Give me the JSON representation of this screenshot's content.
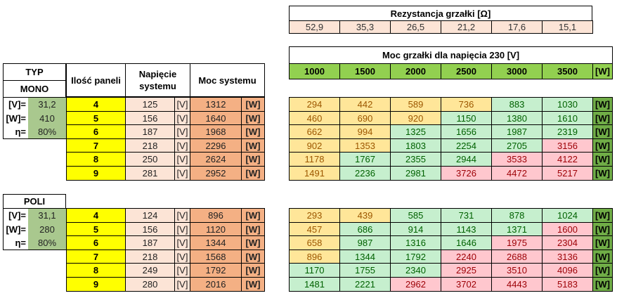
{
  "resistance": {
    "title": "Rezystancja grzałki  [Ω]",
    "values": [
      "52,9",
      "35,3",
      "26,5",
      "21,2",
      "17,6",
      "15,1"
    ]
  },
  "heater_power": {
    "title": "Moc grzałki dla napięcia 230 [V]",
    "values": [
      "1000",
      "1500",
      "2000",
      "2500",
      "3000",
      "3500"
    ],
    "unit": "[W]"
  },
  "headers": {
    "typ": "TYP",
    "ilosc": "Ilość paneli",
    "napiecie": "Napięcie systemu",
    "moc": "Moc systemu"
  },
  "units": {
    "v": "[V]",
    "w": "[W]"
  },
  "colors": {
    "under": "#FFE699",
    "ok": "#C6EFCE",
    "over": "#FFC7CE",
    "header_green": "#92D050",
    "panels": "#FFFF00"
  },
  "legend_status": {
    "y": "under",
    "g": "ok",
    "r": "over"
  },
  "sections": [
    {
      "name": "MONO",
      "params": [
        {
          "label": "[V]=",
          "value": "31,2"
        },
        {
          "label": "[W]=",
          "value": "410"
        },
        {
          "label": "η=",
          "value": "80%"
        }
      ],
      "rows": [
        {
          "panels": "4",
          "voltage": "125",
          "power": "1312",
          "heater": [
            "294",
            "442",
            "589",
            "736",
            "883",
            "1030"
          ],
          "status": [
            "y",
            "y",
            "y",
            "y",
            "g",
            "g"
          ]
        },
        {
          "panels": "5",
          "voltage": "156",
          "power": "1640",
          "heater": [
            "460",
            "690",
            "920",
            "1150",
            "1380",
            "1610"
          ],
          "status": [
            "y",
            "y",
            "y",
            "g",
            "g",
            "g"
          ]
        },
        {
          "panels": "6",
          "voltage": "187",
          "power": "1968",
          "heater": [
            "662",
            "994",
            "1325",
            "1656",
            "1987",
            "2319"
          ],
          "status": [
            "y",
            "y",
            "g",
            "g",
            "g",
            "g"
          ]
        },
        {
          "panels": "7",
          "voltage": "218",
          "power": "2296",
          "heater": [
            "902",
            "1353",
            "1803",
            "2254",
            "2705",
            "3156"
          ],
          "status": [
            "y",
            "y",
            "g",
            "g",
            "g",
            "r"
          ]
        },
        {
          "panels": "8",
          "voltage": "250",
          "power": "2624",
          "heater": [
            "1178",
            "1767",
            "2355",
            "2944",
            "3533",
            "4122"
          ],
          "status": [
            "y",
            "g",
            "g",
            "g",
            "r",
            "r"
          ]
        },
        {
          "panels": "9",
          "voltage": "281",
          "power": "2952",
          "heater": [
            "1491",
            "2236",
            "2981",
            "3726",
            "4472",
            "5217"
          ],
          "status": [
            "y",
            "g",
            "g",
            "r",
            "r",
            "r"
          ]
        }
      ]
    },
    {
      "name": "POLI",
      "params": [
        {
          "label": "[V]=",
          "value": "31,1"
        },
        {
          "label": "[W]=",
          "value": "280"
        },
        {
          "label": "η=",
          "value": "80%"
        }
      ],
      "rows": [
        {
          "panels": "4",
          "voltage": "124",
          "power": "896",
          "heater": [
            "293",
            "439",
            "585",
            "731",
            "878",
            "1024"
          ],
          "status": [
            "y",
            "y",
            "g",
            "g",
            "g",
            "g"
          ]
        },
        {
          "panels": "5",
          "voltage": "156",
          "power": "1120",
          "heater": [
            "457",
            "686",
            "914",
            "1143",
            "1371",
            "1600"
          ],
          "status": [
            "y",
            "g",
            "g",
            "g",
            "g",
            "r"
          ]
        },
        {
          "panels": "6",
          "voltage": "187",
          "power": "1344",
          "heater": [
            "658",
            "987",
            "1316",
            "1646",
            "1975",
            "2304"
          ],
          "status": [
            "y",
            "g",
            "g",
            "g",
            "r",
            "r"
          ]
        },
        {
          "panels": "7",
          "voltage": "218",
          "power": "1568",
          "heater": [
            "896",
            "1344",
            "1792",
            "2240",
            "2688",
            "3136"
          ],
          "status": [
            "y",
            "g",
            "g",
            "r",
            "r",
            "r"
          ]
        },
        {
          "panels": "8",
          "voltage": "249",
          "power": "1792",
          "heater": [
            "1170",
            "1755",
            "2340",
            "2925",
            "3510",
            "4096"
          ],
          "status": [
            "g",
            "g",
            "g",
            "r",
            "r",
            "r"
          ]
        },
        {
          "panels": "9",
          "voltage": "280",
          "power": "2016",
          "heater": [
            "1481",
            "2221",
            "2962",
            "3702",
            "4443",
            "5183"
          ],
          "status": [
            "g",
            "g",
            "r",
            "r",
            "r",
            "r"
          ]
        }
      ]
    }
  ]
}
